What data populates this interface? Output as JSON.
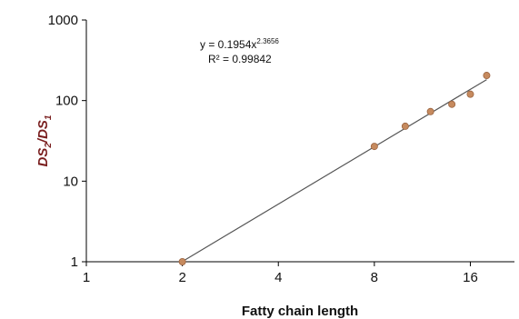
{
  "chart_data": {
    "type": "scatter",
    "title": "",
    "xlabel": "Fatty chain length",
    "ylabel": {
      "part1": "DS",
      "sub1": "2",
      "sep": "/",
      "part2": "DS",
      "sub2": "1"
    },
    "x_scale": "log2",
    "y_scale": "log10",
    "xlim": [
      1,
      22
    ],
    "ylim": [
      1,
      1000
    ],
    "x_ticks": [
      {
        "value": 1,
        "label": "1"
      },
      {
        "value": 2,
        "label": "2"
      },
      {
        "value": 4,
        "label": "4"
      },
      {
        "value": 8,
        "label": "8"
      },
      {
        "value": 16,
        "label": "16"
      }
    ],
    "y_ticks": [
      {
        "value": 1,
        "label": "1"
      },
      {
        "value": 10,
        "label": "10"
      },
      {
        "value": 100,
        "label": "100"
      },
      {
        "value": 1000,
        "label": "1000"
      }
    ],
    "points": [
      {
        "x": 2,
        "y": 1
      },
      {
        "x": 8,
        "y": 27
      },
      {
        "x": 10,
        "y": 48
      },
      {
        "x": 12,
        "y": 73
      },
      {
        "x": 14,
        "y": 90
      },
      {
        "x": 16,
        "y": 120
      },
      {
        "x": 18,
        "y": 205
      }
    ],
    "fit": {
      "type": "power",
      "a": 0.1954,
      "b": 2.3656,
      "x_range": [
        2,
        18
      ],
      "equation_base": "y = 0.1954x",
      "equation_exp": "2.3656",
      "r2_label": "R² = 0.99842"
    },
    "grid": false,
    "legend": "none",
    "colors": {
      "marker_fill": "#c68a5e",
      "marker_stroke": "#9b6440",
      "fit_line": "#555555",
      "ylabel": "#7a1f1f"
    }
  }
}
